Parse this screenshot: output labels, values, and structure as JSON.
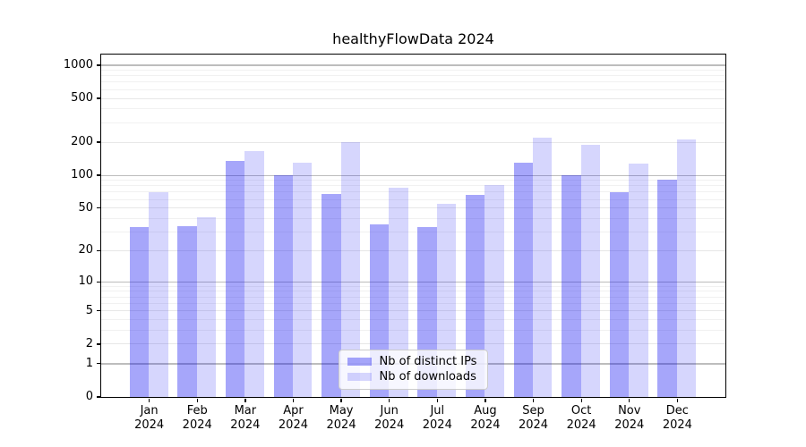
{
  "title": "healthyFlowData 2024",
  "chart_data": {
    "type": "bar",
    "title": "healthyFlowData 2024",
    "categories": [
      "Jan",
      "Feb",
      "Mar",
      "Apr",
      "May",
      "Jun",
      "Jul",
      "Aug",
      "Sep",
      "Oct",
      "Nov",
      "Dec"
    ],
    "category_year": "2024",
    "series": [
      {
        "name": "Nb of distinct IPs",
        "color": "rgba(0,0,240,0.35)",
        "values": [
          33,
          34,
          134,
          100,
          67,
          35,
          33,
          66,
          130,
          100,
          69,
          91
        ]
      },
      {
        "name": "Nb of downloads",
        "color": "rgba(0,0,240,0.16)",
        "values": [
          69,
          41,
          166,
          128,
          200,
          76,
          54,
          80,
          217,
          187,
          126,
          210
        ]
      }
    ],
    "yscale": "log(1+x)",
    "ylabel": "",
    "xlabel": "",
    "ylim": [
      0,
      1250
    ],
    "y_ticks_labeled": [
      0,
      1,
      2,
      5,
      10,
      20,
      50,
      100,
      200,
      500,
      1000
    ],
    "y_ticks_major": [
      1,
      10,
      100,
      1000
    ],
    "grid": "both",
    "legend_position": "lower center"
  },
  "colors": {
    "bar_distinct_ips": "rgba(0,0,240,0.35)",
    "bar_downloads": "rgba(0,0,240,0.16)",
    "grid_major": "#bdbdbd",
    "grid_minor": "#f1f1f1",
    "axis": "#000000",
    "legend_border": "#cccccc"
  }
}
